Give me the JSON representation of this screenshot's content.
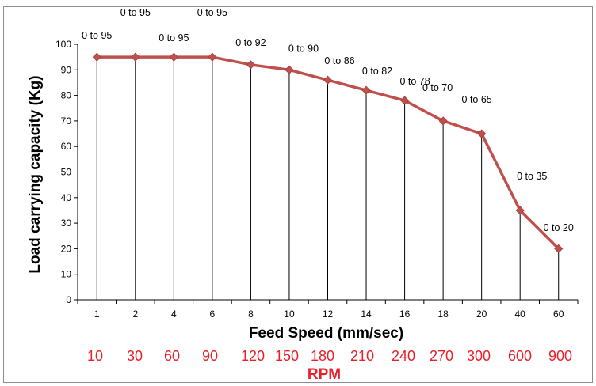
{
  "chart_data": {
    "type": "line",
    "xlabel": "Feed Speed (mm/sec)",
    "ylabel": "Load carrying capacity (Kg)",
    "categories": [
      "1",
      "2",
      "4",
      "6",
      "8",
      "10",
      "12",
      "14",
      "16",
      "18",
      "20",
      "40",
      "60"
    ],
    "series": [
      {
        "values": [
          95,
          95,
          95,
          95,
          92,
          90,
          86,
          82,
          78,
          70,
          65,
          35,
          20
        ],
        "data_labels": [
          "0 to 95",
          "0 to 95",
          "0 to 95",
          "0 to 95",
          "0 to 92",
          "0 to 90",
          "0 to 86",
          "0 to 82",
          "0 to 78",
          "0 to 70",
          "0 to 65",
          "0 to 35",
          "0 to 20"
        ],
        "color": "#c0504d"
      }
    ],
    "ylim": [
      0,
      100
    ],
    "yticks": [
      0,
      10,
      20,
      30,
      40,
      50,
      60,
      70,
      80,
      90,
      100
    ],
    "grid": false,
    "drop_lines": true,
    "marker": "diamond",
    "secondary_labels": {
      "title": "RPM",
      "values": [
        "10",
        "30",
        "60",
        "90",
        "120",
        "150",
        "180",
        "210",
        "240",
        "270",
        "300",
        "600",
        "900"
      ],
      "color": "#e8202a"
    }
  }
}
